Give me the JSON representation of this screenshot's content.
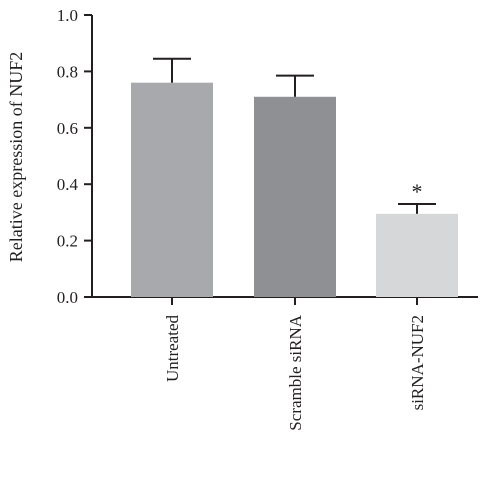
{
  "chart_data": {
    "type": "bar",
    "categories": [
      "Untreated",
      "Scramble siRNA",
      "siRNA-NUF2"
    ],
    "values": [
      0.76,
      0.71,
      0.295
    ],
    "error_plus": [
      0.085,
      0.075,
      0.035
    ],
    "significance": [
      "",
      "",
      "*"
    ],
    "bar_colors": [
      "#a7a9ac",
      "#8f9093",
      "#d6d7d8"
    ],
    "ylabel": "Relative expression of NUF2",
    "xlabel": "",
    "ylim": [
      0,
      1.0
    ],
    "yticks": [
      0.0,
      0.2,
      0.4,
      0.6,
      0.8,
      1.0
    ],
    "ytick_labels": [
      "0.0",
      "0.2",
      "0.4",
      "0.6",
      "0.8",
      "1.0"
    ],
    "grid": false
  }
}
